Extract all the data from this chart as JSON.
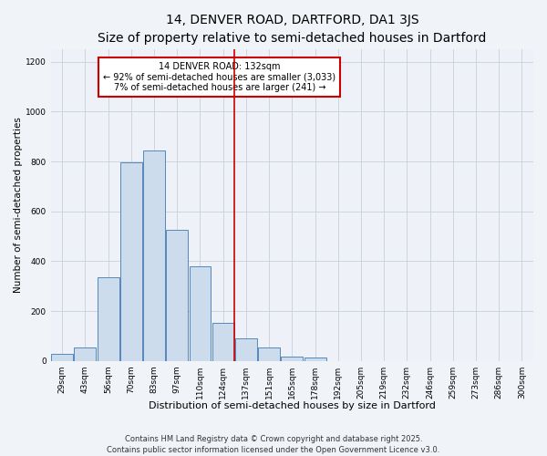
{
  "title": "14, DENVER ROAD, DARTFORD, DA1 3JS",
  "subtitle": "Size of property relative to semi-detached houses in Dartford",
  "xlabel": "Distribution of semi-detached houses by size in Dartford",
  "ylabel": "Number of semi-detached properties",
  "bar_labels": [
    "29sqm",
    "43sqm",
    "56sqm",
    "70sqm",
    "83sqm",
    "97sqm",
    "110sqm",
    "124sqm",
    "137sqm",
    "151sqm",
    "165sqm",
    "178sqm",
    "192sqm",
    "205sqm",
    "219sqm",
    "232sqm",
    "246sqm",
    "259sqm",
    "273sqm",
    "286sqm",
    "300sqm"
  ],
  "bar_values": [
    28,
    55,
    335,
    795,
    845,
    525,
    380,
    155,
    90,
    55,
    20,
    15,
    0,
    0,
    0,
    0,
    0,
    0,
    0,
    0,
    0
  ],
  "bar_color": "#ccdcec",
  "bar_edge_color": "#5588bb",
  "vline_color": "#cc0000",
  "annotation_text": "14 DENVER ROAD: 132sqm\n← 92% of semi-detached houses are smaller (3,033)\n7% of semi-detached houses are larger (241) →",
  "annotation_box_color": "#ffffff",
  "annotation_box_edge": "#cc0000",
  "ylim": [
    0,
    1250
  ],
  "yticks": [
    0,
    200,
    400,
    600,
    800,
    1000,
    1200
  ],
  "footer1": "Contains HM Land Registry data © Crown copyright and database right 2025.",
  "footer2": "Contains public sector information licensed under the Open Government Licence v3.0.",
  "background_color": "#f0f4f8",
  "plot_bg_color": "#eef2f8",
  "grid_color": "#c8d0dc",
  "title_fontsize": 10,
  "xlabel_fontsize": 8,
  "ylabel_fontsize": 7.5,
  "footer_fontsize": 6,
  "annotation_fontsize": 7,
  "tick_fontsize": 6.5
}
